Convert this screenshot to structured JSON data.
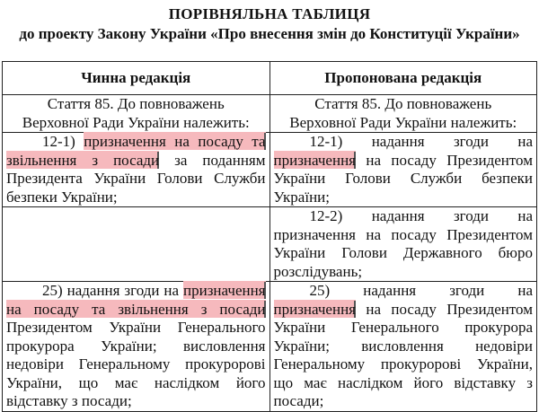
{
  "title": "ПОРІВНЯЛЬНА ТАБЛИЦЯ",
  "subtitle": "до проекту Закону України «Про внесення змін до Конституції України»",
  "highlight_color": "#f6b9bd",
  "headers": [
    "Чинна редакція",
    "Пропонована редакція"
  ],
  "rows": [
    {
      "left": [
        {
          "cls": "center",
          "segs": [
            {
              "t": "Стаття 85. До повноважень"
            }
          ]
        },
        {
          "cls": "center",
          "segs": [
            {
              "t": "Верховної Ради України належить:"
            }
          ]
        }
      ],
      "right": [
        {
          "cls": "center",
          "segs": [
            {
              "t": "Стаття 85. До повноважень"
            }
          ]
        },
        {
          "cls": "center",
          "segs": [
            {
              "t": "Верховної Ради України належить:"
            }
          ]
        }
      ]
    },
    {
      "left": [
        {
          "cls": "ind",
          "segs": [
            {
              "t": "12-1) "
            },
            {
              "t": "призначення на посаду та",
              "hl": true
            }
          ]
        },
        {
          "cls": "",
          "segs": [
            {
              "t": "звільнення з посади",
              "hl": true
            },
            {
              "t": " за поданням"
            }
          ]
        },
        {
          "cls": "",
          "segs": [
            {
              "t": "Президента України Голови Служби"
            }
          ]
        },
        {
          "cls": "last",
          "segs": [
            {
              "t": "безпеки України;"
            }
          ]
        }
      ],
      "right": [
        {
          "cls": "ind",
          "segs": [
            {
              "t": "12-1) надання згоди на"
            }
          ]
        },
        {
          "cls": "",
          "segs": [
            {
              "t": "призначення",
              "hl": true
            },
            {
              "t": " на посаду Президентом"
            }
          ]
        },
        {
          "cls": "",
          "segs": [
            {
              "t": "України Голови Служби безпеки"
            }
          ]
        },
        {
          "cls": "last",
          "segs": [
            {
              "t": "України;"
            }
          ]
        }
      ]
    },
    {
      "left": [],
      "right": [
        {
          "cls": "ind",
          "segs": [
            {
              "t": "12-2) надання згоди на"
            }
          ]
        },
        {
          "cls": "",
          "segs": [
            {
              "t": "призначення на посаду Президентом"
            }
          ]
        },
        {
          "cls": "",
          "segs": [
            {
              "t": "України Голови Державного бюро"
            }
          ]
        },
        {
          "cls": "last",
          "segs": [
            {
              "t": "розслідувань;"
            }
          ]
        }
      ]
    },
    {
      "left": [
        {
          "cls": "ind",
          "segs": [
            {
              "t": "25) надання згоди на "
            },
            {
              "t": "призначення",
              "hl": true
            }
          ]
        },
        {
          "cls": "",
          "segs": [
            {
              "t": "на посаду та звільнення з посади",
              "hl": true
            }
          ]
        },
        {
          "cls": "",
          "segs": [
            {
              "t": "Президентом України Генерального"
            }
          ]
        },
        {
          "cls": "",
          "segs": [
            {
              "t": "прокурора України; висловлення"
            }
          ]
        },
        {
          "cls": "",
          "segs": [
            {
              "t": "недовіри Генеральному прокуророві"
            }
          ]
        },
        {
          "cls": "",
          "segs": [
            {
              "t": "України, що має наслідком його"
            }
          ]
        },
        {
          "cls": "last",
          "segs": [
            {
              "t": "відставку з посади;"
            }
          ]
        }
      ],
      "right": [
        {
          "cls": "ind",
          "segs": [
            {
              "t": "25) надання згоди на"
            }
          ]
        },
        {
          "cls": "",
          "segs": [
            {
              "t": "призначення",
              "hl": true
            },
            {
              "t": " на посаду Президентом"
            }
          ]
        },
        {
          "cls": "",
          "segs": [
            {
              "t": "України Генерального прокурора"
            }
          ]
        },
        {
          "cls": "",
          "segs": [
            {
              "t": "України; висловлення недовіри"
            }
          ]
        },
        {
          "cls": "",
          "segs": [
            {
              "t": "Генеральному прокуророві України,"
            }
          ]
        },
        {
          "cls": "",
          "segs": [
            {
              "t": "що має наслідком його відставку з"
            }
          ]
        },
        {
          "cls": "last",
          "segs": [
            {
              "t": "посади;"
            }
          ]
        }
      ]
    }
  ]
}
